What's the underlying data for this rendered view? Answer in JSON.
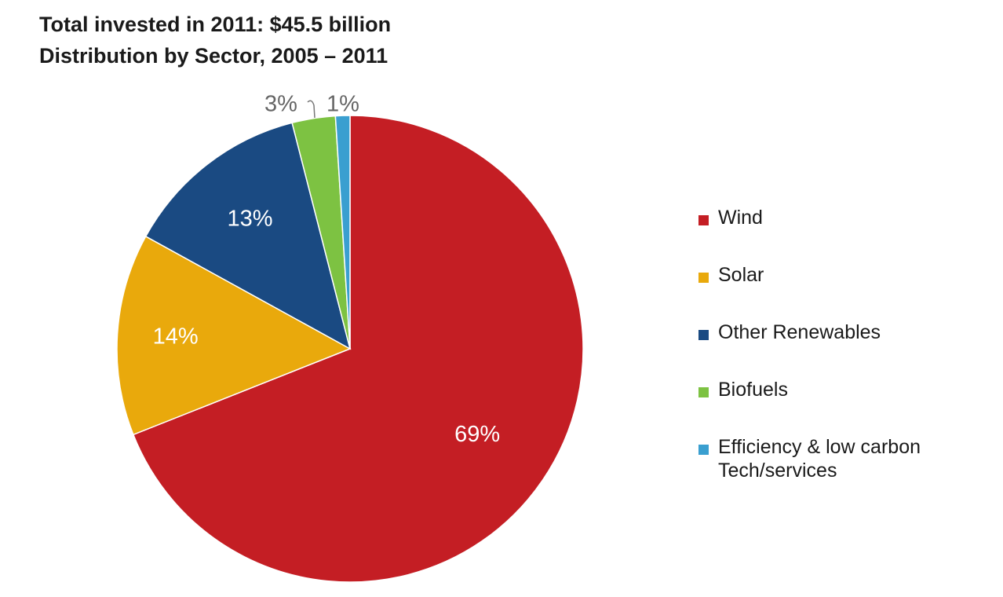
{
  "header": {
    "line1": "Total invested in 2011: $45.5 billion",
    "line2": "Distribution by Sector, 2005 – 2011"
  },
  "chart_data": {
    "type": "pie",
    "title": "Total invested in 2011: $45.5 billion",
    "subtitle": "Distribution by Sector, 2005 – 2011",
    "legend_position": "right",
    "slices": [
      {
        "name": "Wind",
        "value": 69,
        "label": "69%",
        "color": "#c41e24"
      },
      {
        "name": "Solar",
        "value": 14,
        "label": "14%",
        "color": "#e9a90c"
      },
      {
        "name": "Other Renewables",
        "value": 13,
        "label": "13%",
        "color": "#1a4a82"
      },
      {
        "name": "Biofuels",
        "value": 3,
        "label": "3%",
        "color": "#7dc242"
      },
      {
        "name": "Efficiency & low carbon\nTech/services",
        "value": 1,
        "label": "1%",
        "color": "#3a9fd0"
      }
    ]
  }
}
